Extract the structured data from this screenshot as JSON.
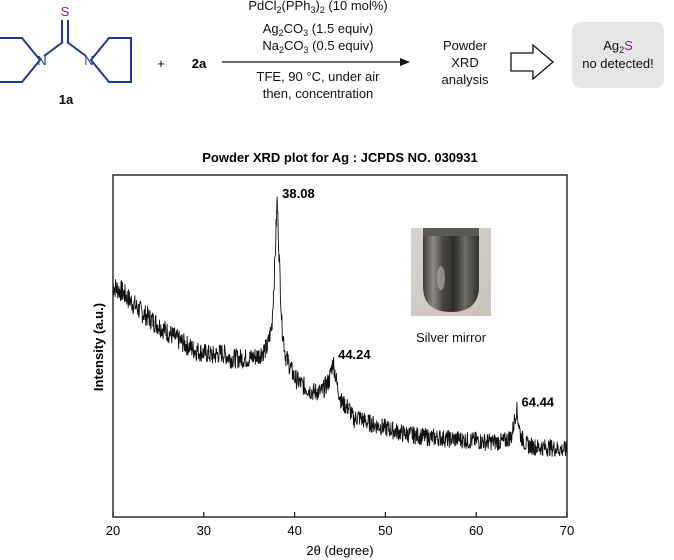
{
  "scheme": {
    "reactant1_label": "1a",
    "atom_S": "S",
    "atom_N": "N",
    "plus": "+",
    "reactant2_label": "2a",
    "conditions_above": [
      {
        "pre": "PdCl",
        "sub1": "2",
        "mid": "(PPh",
        "sub2": "3",
        "post": ")",
        "sub3": "2",
        "tail": " (10 mol%)"
      },
      {
        "pre": "Ag",
        "sub1": "2",
        "mid": "CO",
        "sub2": "3",
        "tail": " (1.5 equiv)"
      },
      {
        "pre": "Na",
        "sub1": "2",
        "mid": "CO",
        "sub2": "3",
        "tail": " (0.5 equiv)"
      }
    ],
    "conditions_below": [
      "TFE, 90 °C, under air",
      "then, concentration"
    ],
    "analysis_lines": [
      "Powder",
      "XRD",
      "analysis"
    ],
    "result": {
      "prefix": "Ag",
      "subscript": "2",
      "element": "S",
      "line2": "no detected!"
    },
    "colors": {
      "sulfur": "#8a1b8a",
      "bond": "#1f3a93",
      "result_bg": "#e6e6e6"
    }
  },
  "inset": {
    "label": "Silver mirror"
  },
  "chart_data": {
    "type": "line",
    "title": "Powder XRD plot for Ag : JCPDS NO. 030931",
    "xlabel": "2θ (degree)",
    "ylabel": "Intensity (a.u.)",
    "xlim": [
      20,
      70
    ],
    "xticks": [
      20,
      30,
      40,
      50,
      60,
      70
    ],
    "y_ticks_shown": false,
    "grid": false,
    "series": [
      {
        "points": [
          [
            20,
            0.69
          ],
          [
            21,
            0.67
          ],
          [
            22,
            0.635
          ],
          [
            23,
            0.6
          ],
          [
            24,
            0.575
          ],
          [
            25,
            0.55
          ],
          [
            26,
            0.525
          ],
          [
            27,
            0.5
          ],
          [
            28,
            0.48
          ],
          [
            29,
            0.46
          ],
          [
            30,
            0.45
          ],
          [
            31,
            0.44
          ],
          [
            32,
            0.45
          ],
          [
            33,
            0.43
          ],
          [
            34,
            0.43
          ],
          [
            35,
            0.43
          ],
          [
            36,
            0.44
          ],
          [
            37,
            0.47
          ],
          [
            37.5,
            0.55
          ],
          [
            37.8,
            0.75
          ],
          [
            38.08,
            1.0
          ],
          [
            38.3,
            0.8
          ],
          [
            38.6,
            0.55
          ],
          [
            39,
            0.44
          ],
          [
            40,
            0.36
          ],
          [
            41,
            0.33
          ],
          [
            42,
            0.31
          ],
          [
            43,
            0.31
          ],
          [
            43.8,
            0.35
          ],
          [
            44.24,
            0.42
          ],
          [
            44.7,
            0.33
          ],
          [
            45.2,
            0.27
          ],
          [
            46,
            0.25
          ],
          [
            46.5,
            0.21
          ],
          [
            47,
            0.22
          ],
          [
            48,
            0.2
          ],
          [
            49,
            0.19
          ],
          [
            50,
            0.18
          ],
          [
            51,
            0.17
          ],
          [
            52,
            0.16
          ],
          [
            53,
            0.155
          ],
          [
            54,
            0.15
          ],
          [
            55,
            0.145
          ],
          [
            56,
            0.145
          ],
          [
            57,
            0.14
          ],
          [
            58,
            0.14
          ],
          [
            59,
            0.135
          ],
          [
            60,
            0.135
          ],
          [
            61,
            0.13
          ],
          [
            62,
            0.13
          ],
          [
            63,
            0.13
          ],
          [
            63.9,
            0.15
          ],
          [
            64.44,
            0.25
          ],
          [
            64.9,
            0.15
          ],
          [
            65.5,
            0.12
          ],
          [
            66,
            0.115
          ],
          [
            67,
            0.11
          ],
          [
            68,
            0.11
          ],
          [
            69,
            0.105
          ],
          [
            70,
            0.1
          ]
        ]
      }
    ],
    "peaks": [
      {
        "x": 38.08,
        "label": "38.08"
      },
      {
        "x": 44.24,
        "label": "44.24"
      },
      {
        "x": 64.44,
        "label": "64.44"
      }
    ]
  }
}
